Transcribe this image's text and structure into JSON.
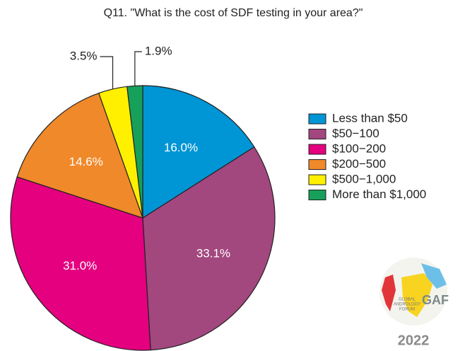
{
  "chart_data": {
    "type": "pie",
    "title": "Q11. \"What is the cost of SDF testing in your area?\"",
    "categories": [
      "Less than $50",
      "$50−100",
      "$100−200",
      "$200−500",
      "$500−1,000",
      "More than $1,000"
    ],
    "values": [
      16.0,
      33.1,
      31.0,
      14.6,
      3.5,
      1.9
    ],
    "value_labels": [
      "16.0%",
      "33.1%",
      "31.0%",
      "14.6%",
      "3.5%",
      "1.9%"
    ],
    "colors": [
      "#0095d5",
      "#a3477f",
      "#e4007f",
      "#f0892a",
      "#fff000",
      "#17a05a"
    ],
    "legend": "right"
  },
  "logo": {
    "lines": [
      "GLOBAL",
      "ANDROLOGY",
      "FORUM"
    ],
    "mark": "GAF",
    "year": "2022"
  }
}
